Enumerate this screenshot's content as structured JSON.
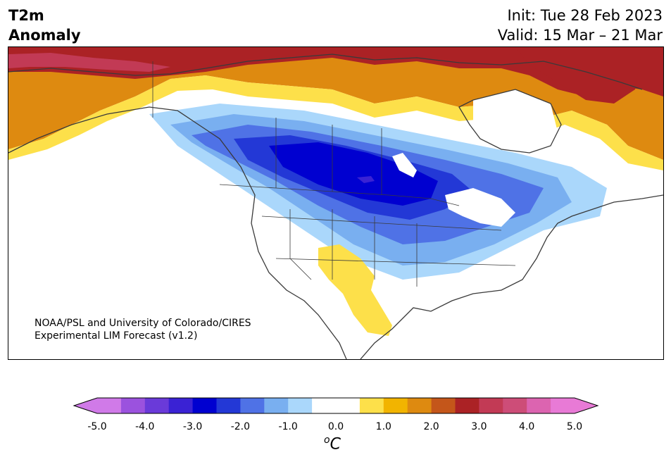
{
  "title": {
    "line1": "T2m",
    "line2": "Anomaly"
  },
  "dates": {
    "init": "Init: Tue 28 Feb 2023",
    "valid": "Valid: 15 Mar – 21 Mar"
  },
  "credit": {
    "line1": "NOAA/PSL and University of Colorado/CIRES",
    "line2": "Experimental LIM Forecast (v1.2)"
  },
  "colorbar": {
    "unit_super": "o",
    "unit_base": "C",
    "min": -5.0,
    "max": 5.0,
    "tick_labels": [
      "-5.0",
      "-4.0",
      "-3.0",
      "-2.0",
      "-1.0",
      "0.0",
      "1.0",
      "2.0",
      "3.0",
      "4.0",
      "5.0"
    ],
    "colors": [
      "#d07ae8",
      "#9b52de",
      "#6a3ad9",
      "#3a22d4",
      "#0000d0",
      "#2338d6",
      "#4f72e6",
      "#79aff0",
      "#aad7fb",
      "#ffffff",
      "#ffffff",
      "#fde04a",
      "#f2b400",
      "#de8a10",
      "#c4561a",
      "#ab2225",
      "#c23a55",
      "#cd4d78",
      "#dc64b0",
      "#e87ad6"
    ],
    "under_color": "#d07ae8",
    "over_color": "#e87ad6"
  },
  "map": {
    "region": "North America",
    "background": "#ffffff",
    "coast_color": "#3a3a3a",
    "anomaly_fields": [
      {
        "label": "cold core",
        "value": -3.0,
        "color": "#0000d0"
      },
      {
        "label": "warm southwest",
        "value": 0.7,
        "color": "#fde04a"
      },
      {
        "label": "warm arctic",
        "value": 3.0,
        "color": "#ab2225"
      }
    ]
  }
}
